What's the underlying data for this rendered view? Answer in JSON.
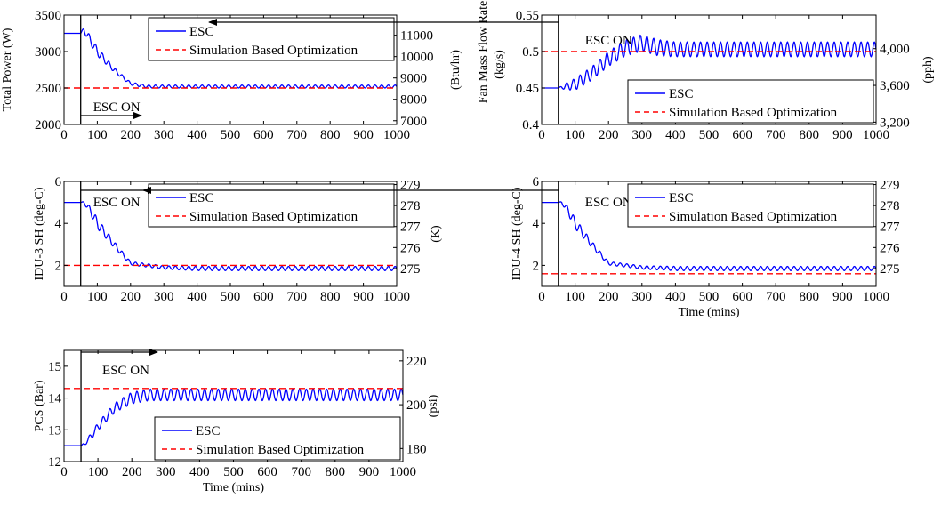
{
  "colors": {
    "esc": "#0000ff",
    "opt": "#ff0000",
    "axis": "#000000",
    "background": "#ffffff"
  },
  "chart_data": [
    {
      "type": "line",
      "xlabel": "",
      "ylabel": "Total Power (W)",
      "y2label": "(Btu/hr)",
      "xlim": [
        0,
        1000
      ],
      "ylim": [
        2000,
        3500
      ],
      "x_ticks": [
        0,
        100,
        200,
        300,
        400,
        500,
        600,
        700,
        800,
        900,
        1000
      ],
      "y_ticks": [
        2000,
        2500,
        3000,
        3500
      ],
      "y2_ticks": [
        "7000",
        "8000",
        "9000",
        "10000",
        "11000"
      ],
      "y2_tick_values": [
        7000,
        8000,
        9000,
        10000,
        11000
      ],
      "y2_factor": 3.412,
      "annotation": "ESC ON",
      "esc_on_time": 50,
      "legend": [
        "ESC",
        "Simulation Based Optimization"
      ],
      "legend_position": "top-right",
      "series": [
        {
          "name": "ESC",
          "x": [
            0,
            50,
            60,
            80,
            100,
            150,
            200,
            250,
            1000
          ],
          "y": [
            3250,
            3250,
            3300,
            3150,
            3000,
            2750,
            2560,
            2520,
            2520
          ],
          "osc_amplitude": [
            0,
            0,
            40,
            60,
            60,
            30,
            20,
            20,
            20
          ],
          "osc_period": 20
        },
        {
          "name": "Simulation Based Optimization",
          "x": [
            0,
            1000
          ],
          "y": [
            2500,
            2500
          ]
        }
      ]
    },
    {
      "type": "line",
      "xlabel": "",
      "ylabel": "Fan Mass Flow Rate (kg/s)",
      "y2label": "(pph)",
      "xlim": [
        0,
        1000
      ],
      "ylim": [
        0.4,
        0.55
      ],
      "x_ticks": [
        0,
        100,
        200,
        300,
        400,
        500,
        600,
        700,
        800,
        900,
        1000
      ],
      "y_ticks": [
        0.4,
        0.45,
        0.5,
        0.55
      ],
      "y2_ticks": [
        "3,200",
        "3,600",
        "4,000"
      ],
      "y2_tick_values": [
        3200,
        3600,
        4000
      ],
      "y2_factor": 7936.6,
      "annotation": "ESC ON",
      "esc_on_time": 50,
      "legend": [
        "ESC",
        "Simulation Based Optimization"
      ],
      "legend_position": "bottom-right",
      "series": [
        {
          "name": "ESC",
          "x": [
            0,
            50,
            70,
            100,
            150,
            200,
            250,
            300,
            350,
            400,
            1000
          ],
          "y": [
            0.45,
            0.45,
            0.452,
            0.455,
            0.47,
            0.49,
            0.505,
            0.512,
            0.505,
            0.503,
            0.503
          ],
          "osc_amplitude": [
            0,
            0,
            0.004,
            0.008,
            0.009,
            0.01,
            0.011,
            0.011,
            0.011,
            0.01,
            0.01
          ],
          "osc_period": 20
        },
        {
          "name": "Simulation Based Optimization",
          "x": [
            0,
            1000
          ],
          "y": [
            0.5,
            0.5
          ]
        }
      ]
    },
    {
      "type": "line",
      "xlabel": "",
      "ylabel": "IDU-3 SH (deg-C)",
      "y2label": "(K)",
      "xlim": [
        0,
        1000
      ],
      "ylim": [
        1,
        6
      ],
      "x_ticks": [
        0,
        100,
        200,
        300,
        400,
        500,
        600,
        700,
        800,
        900,
        1000
      ],
      "y_ticks": [
        2,
        4,
        6
      ],
      "y2_ticks": [
        "275",
        "276",
        "277",
        "278",
        "279"
      ],
      "y2_tick_values": [
        275,
        276,
        277,
        278,
        279
      ],
      "y2_offset": 273.15,
      "annotation": "ESC ON",
      "esc_on_time": 50,
      "legend": [
        "ESC",
        "Simulation Based Optimization"
      ],
      "legend_position": "top-right",
      "series": [
        {
          "name": "ESC",
          "x": [
            0,
            50,
            60,
            80,
            100,
            150,
            200,
            250,
            300,
            400,
            1000
          ],
          "y": [
            5,
            5,
            5,
            4.6,
            4.0,
            3.0,
            2.1,
            2.0,
            1.9,
            1.85,
            1.85
          ],
          "osc_amplitude": [
            0,
            0,
            0.05,
            0.2,
            0.25,
            0.15,
            0.08,
            0.08,
            0.08,
            0.1,
            0.1
          ],
          "osc_period": 20
        },
        {
          "name": "Simulation Based Optimization",
          "x": [
            0,
            1000
          ],
          "y": [
            2.0,
            2.0
          ]
        }
      ]
    },
    {
      "type": "line",
      "xlabel": "Time (mins)",
      "ylabel": "IDU-4 SH (deg-C)",
      "y2label": "",
      "xlim": [
        0,
        1000
      ],
      "ylim": [
        1,
        6
      ],
      "x_ticks": [
        0,
        100,
        200,
        300,
        400,
        500,
        600,
        700,
        800,
        900,
        1000
      ],
      "y_ticks": [
        2,
        4,
        6
      ],
      "y2_ticks": [
        "275",
        "276",
        "277",
        "278",
        "279"
      ],
      "y2_tick_values": [
        275,
        276,
        277,
        278,
        279
      ],
      "y2_offset": 273.15,
      "annotation": "ESC ON",
      "esc_on_time": 50,
      "legend": [
        "ESC",
        "Simulation Based Optimization"
      ],
      "legend_position": "top-right",
      "series": [
        {
          "name": "ESC",
          "x": [
            0,
            50,
            60,
            80,
            100,
            150,
            200,
            250,
            300,
            400,
            1000
          ],
          "y": [
            5,
            5,
            5,
            4.6,
            4.0,
            3.0,
            2.1,
            2.0,
            1.9,
            1.85,
            1.85
          ],
          "osc_amplitude": [
            0,
            0,
            0.05,
            0.2,
            0.25,
            0.15,
            0.08,
            0.08,
            0.08,
            0.1,
            0.1
          ],
          "osc_period": 20
        },
        {
          "name": "Simulation Based Optimization",
          "x": [
            0,
            1000
          ],
          "y": [
            1.6,
            1.6
          ]
        }
      ]
    },
    {
      "type": "line",
      "xlabel": "Time (mins)",
      "ylabel": "PCS (Bar)",
      "y2label": "(psi)",
      "xlim": [
        0,
        1000
      ],
      "ylim": [
        12,
        15.5
      ],
      "x_ticks": [
        0,
        100,
        200,
        300,
        400,
        500,
        600,
        700,
        800,
        900,
        1000
      ],
      "y_ticks": [
        12,
        13,
        14,
        15
      ],
      "y2_ticks": [
        "180",
        "200",
        "220"
      ],
      "y2_tick_values": [
        180,
        200,
        220
      ],
      "y2_factor": 14.5038,
      "annotation": "ESC ON",
      "esc_on_time": 50,
      "legend": [
        "ESC",
        "Simulation Based Optimization"
      ],
      "legend_position": "bottom-right",
      "series": [
        {
          "name": "ESC",
          "x": [
            0,
            50,
            60,
            80,
            100,
            150,
            200,
            250,
            1000
          ],
          "y": [
            12.5,
            12.5,
            12.55,
            12.8,
            13.1,
            13.7,
            14.0,
            14.1,
            14.1
          ],
          "osc_amplitude": [
            0,
            0,
            0.05,
            0.1,
            0.12,
            0.15,
            0.18,
            0.18,
            0.18
          ],
          "osc_period": 20
        },
        {
          "name": "Simulation Based Optimization",
          "x": [
            0,
            1000
          ],
          "y": [
            14.3,
            14.3
          ]
        }
      ]
    }
  ]
}
